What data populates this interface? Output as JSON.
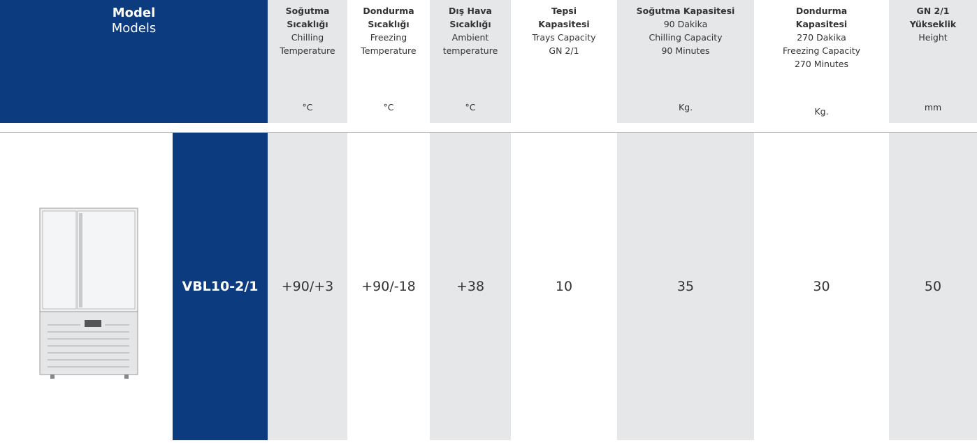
{
  "header": {
    "model": {
      "title": "Model",
      "subtitle": "Models"
    },
    "columns": [
      {
        "bold": [
          "Soğutma",
          "Sıcaklığı"
        ],
        "regular": [
          "Chilling",
          "Temperature"
        ],
        "unit": "°C"
      },
      {
        "bold": [
          "Dondurma",
          "Sıcaklığı"
        ],
        "regular": [
          "Freezing",
          "Temperature"
        ],
        "unit": "°C"
      },
      {
        "bold": [
          "Dış Hava",
          "Sıcaklığı"
        ],
        "regular": [
          "Ambient",
          "temperature"
        ],
        "unit": "°C"
      },
      {
        "bold": [
          "Tepsi",
          "Kapasitesi"
        ],
        "regular": [
          "Trays Capacity",
          "GN 2/1"
        ]
      },
      {
        "bold": [
          "Soğutma Kapasitesi"
        ],
        "regular": [
          "90 Dakika",
          "Chilling Capacity",
          "90 Minutes"
        ],
        "unit": "Kg."
      },
      {
        "bold": [
          "Dondurma",
          "Kapasitesi"
        ],
        "regular": [
          "270 Dakika",
          "Freezing Capacity",
          "270 Minutes"
        ],
        "unit": "Kg."
      },
      {
        "bold": [
          "GN 2/1",
          "Yükseklik"
        ],
        "regular": [
          "Height"
        ],
        "unit": "mm"
      }
    ]
  },
  "table": {
    "rows": [
      {
        "model": "VBL10-2/1",
        "values": [
          "+90/+3",
          "+90/-18",
          "+38",
          "10",
          "35",
          "30",
          "50"
        ]
      }
    ]
  }
}
